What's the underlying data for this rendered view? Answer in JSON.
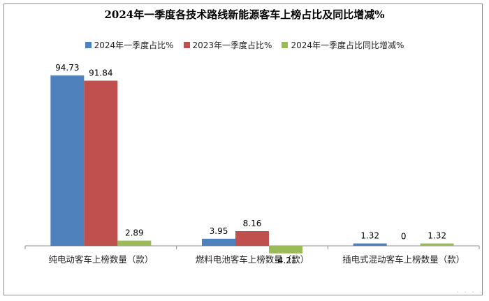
{
  "chart_data": {
    "type": "bar",
    "title": "2024年一季度各技术路线新能源客车上榜占比及同比增减%",
    "categories": [
      "纯电动客车上榜数量（款）",
      "燃料电池客车上榜数量（款）",
      "插电式混动客车上榜数量（款）"
    ],
    "series": [
      {
        "name": "2024年一季度占比%",
        "color": "#4f81bd",
        "values": [
          94.73,
          3.95,
          1.32
        ],
        "labels": [
          "94.73",
          "3.95",
          "1.32"
        ]
      },
      {
        "name": "2023年一季度占比%",
        "color": "#c0504d",
        "values": [
          91.84,
          8.16,
          0
        ],
        "labels": [
          "91.84",
          "8.16",
          "0"
        ]
      },
      {
        "name": "2024年一季度占比同比增减%",
        "color": "#9bbb59",
        "values": [
          2.89,
          -4.21,
          1.32
        ],
        "labels": [
          "2.89",
          "-4.21",
          "1.32"
        ]
      }
    ],
    "ylim": [
      -9,
      100
    ],
    "grid": false,
    "legend_position": "top"
  }
}
